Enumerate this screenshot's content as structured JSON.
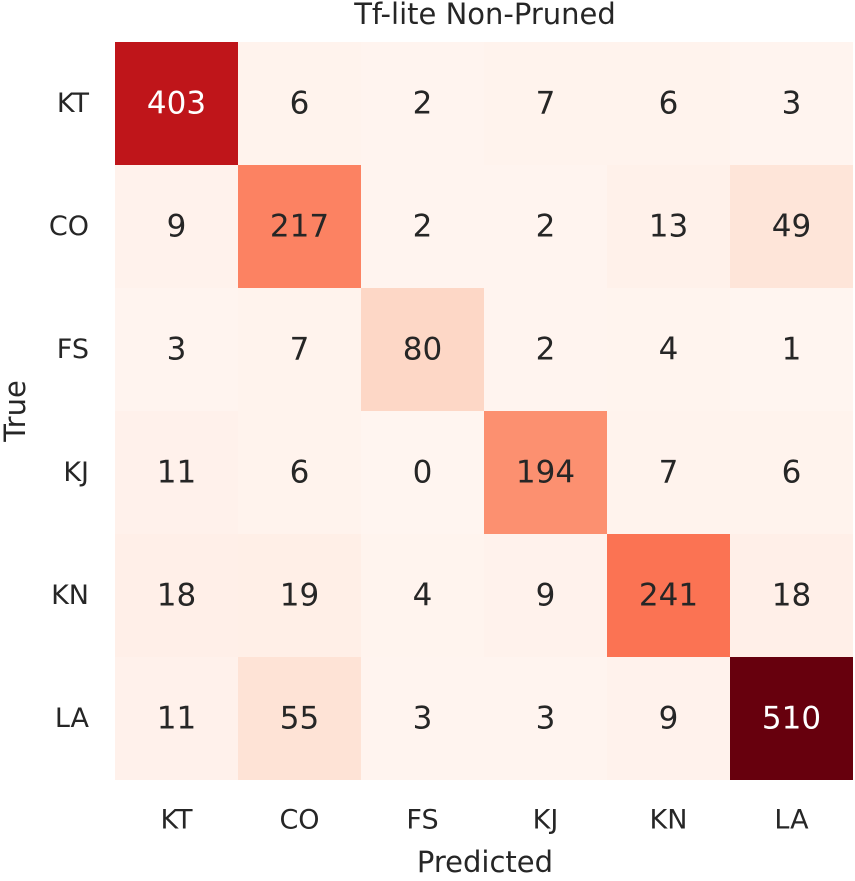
{
  "chart_data": {
    "type": "heatmap",
    "title": "Tf-lite Non-Pruned",
    "xlabel": "Predicted",
    "ylabel": "True",
    "x_categories": [
      "KT",
      "CO",
      "FS",
      "KJ",
      "KN",
      "LA"
    ],
    "y_categories": [
      "KT",
      "CO",
      "FS",
      "KJ",
      "KN",
      "LA"
    ],
    "values": [
      [
        403,
        6,
        2,
        7,
        6,
        3
      ],
      [
        9,
        217,
        2,
        2,
        13,
        49
      ],
      [
        3,
        7,
        80,
        2,
        4,
        1
      ],
      [
        11,
        6,
        0,
        194,
        7,
        6
      ],
      [
        18,
        19,
        4,
        9,
        241,
        18
      ],
      [
        11,
        55,
        3,
        3,
        9,
        510
      ]
    ],
    "value_range": [
      0,
      510
    ],
    "colormap": "Reds",
    "grid": false,
    "colorbar": false
  }
}
